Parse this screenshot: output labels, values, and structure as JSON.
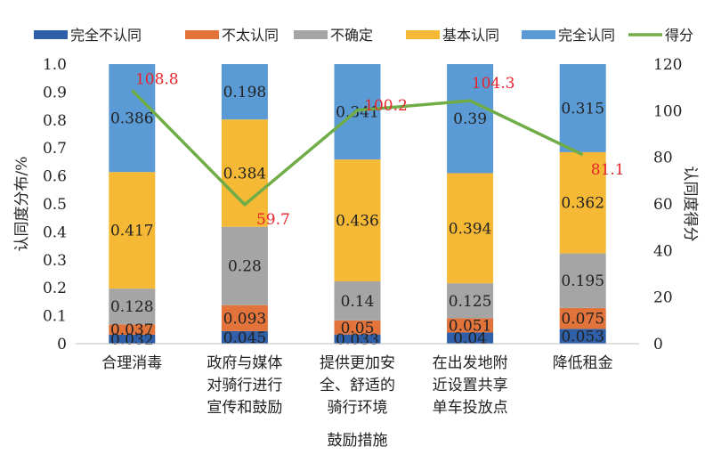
{
  "chart_data": {
    "type": "bar",
    "stacked": true,
    "xlabel": "鼓励措施",
    "ylabel": "认同度分布/%",
    "y2label": "认同度得分",
    "ylim": [
      0,
      1.0
    ],
    "y2lim": [
      0,
      120
    ],
    "yticks": [
      "0",
      "0.1",
      "0.2",
      "0.3",
      "0.4",
      "0.5",
      "0.6",
      "0.7",
      "0.8",
      "0.9",
      "1.0"
    ],
    "y2ticks": [
      "0",
      "20",
      "40",
      "60",
      "80",
      "100",
      "120"
    ],
    "legend_position": "top",
    "categories": [
      [
        "合理消毒"
      ],
      [
        "政府与媒体",
        "对骑行进行",
        "宣传和鼓励"
      ],
      [
        "提供更加安",
        "全、舒适的",
        "骑行环境"
      ],
      [
        "在出发地附",
        "近设置共享",
        "单车投放点"
      ],
      [
        "降低租金"
      ]
    ],
    "series": [
      {
        "name": "完全不认同",
        "color": "#2e5fa8",
        "values": [
          0.032,
          0.045,
          0.033,
          0.04,
          0.053
        ],
        "labels": [
          "0.032",
          "0.045",
          "0.033",
          "0.04",
          "0.053"
        ]
      },
      {
        "name": "不太认同",
        "color": "#e2733a",
        "values": [
          0.037,
          0.093,
          0.05,
          0.051,
          0.075
        ],
        "labels": [
          "0.037",
          "0.093",
          "0.05",
          "0.051",
          "0.075"
        ]
      },
      {
        "name": "不确定",
        "color": "#a5a5a5",
        "values": [
          0.128,
          0.28,
          0.14,
          0.125,
          0.195
        ],
        "labels": [
          "0.128",
          "0.28",
          "0.14",
          "0.125",
          "0.195"
        ]
      },
      {
        "name": "基本认同",
        "color": "#f5b935",
        "values": [
          0.417,
          0.384,
          0.436,
          0.394,
          0.362
        ],
        "labels": [
          "0.417",
          "0.384",
          "0.436",
          "0.394",
          "0.362"
        ]
      },
      {
        "name": "完全认同",
        "color": "#5b9bd5",
        "values": [
          0.386,
          0.198,
          0.341,
          0.39,
          0.315
        ],
        "labels": [
          "0.386",
          "0.198",
          "0.341",
          "0.39",
          "0.315"
        ]
      }
    ],
    "line": {
      "name": "得分",
      "color": "#70ad47",
      "axis": "right",
      "values": [
        108.8,
        59.7,
        100.2,
        104.3,
        81.1
      ],
      "labels": [
        "108.8",
        "59.7",
        "100.2",
        "104.3",
        "81.1"
      ],
      "label_color": "#e8232b"
    }
  }
}
